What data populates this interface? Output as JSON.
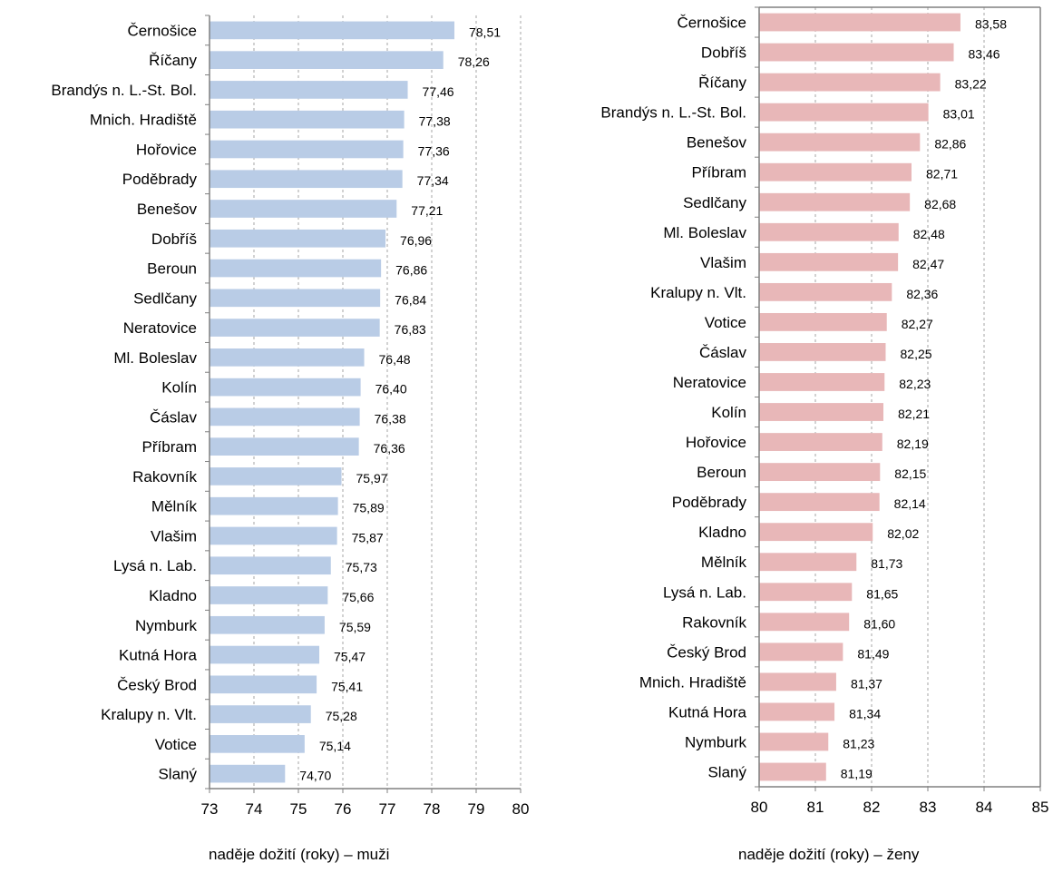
{
  "colors": {
    "male_bar": "#b9cce6",
    "female_bar": "#e8b7b8",
    "axis": "#808080",
    "grid": "#a6a6a6"
  },
  "chart_data": [
    {
      "type": "bar",
      "orientation": "horizontal",
      "title": "",
      "xlabel": "naděje dožití (roky) – muži",
      "ylabel": "",
      "xlim": [
        73,
        80
      ],
      "xticks": [
        "73",
        "74",
        "75",
        "76",
        "77",
        "78",
        "79",
        "80"
      ],
      "grid": "vertical dashed",
      "categories": [
        "Černošice",
        "Říčany",
        "Brandýs n. L.-St. Bol.",
        "Mnich. Hradiště",
        "Hořovice",
        "Poděbrady",
        "Benešov",
        "Dobříš",
        "Beroun",
        "Sedlčany",
        "Neratovice",
        "Ml. Boleslav",
        "Kolín",
        "Čáslav",
        "Příbram",
        "Rakovník",
        "Mělník",
        "Vlašim",
        "Lysá n. Lab.",
        "Kladno",
        "Nymburk",
        "Kutná Hora",
        "Český Brod",
        "Kralupy n. Vlt.",
        "Votice",
        "Slaný"
      ],
      "values": [
        78.51,
        78.26,
        77.46,
        77.38,
        77.36,
        77.34,
        77.21,
        76.96,
        76.86,
        76.84,
        76.83,
        76.48,
        76.4,
        76.38,
        76.36,
        75.97,
        75.89,
        75.87,
        75.73,
        75.66,
        75.59,
        75.47,
        75.41,
        75.28,
        75.14,
        74.7
      ],
      "value_labels": [
        "78,51",
        "78,26",
        "77,46",
        "77,38",
        "77,36",
        "77,34",
        "77,21",
        "76,96",
        "76,86",
        "76,84",
        "76,83",
        "76,48",
        "76,40",
        "76,38",
        "76,36",
        "75,97",
        "75,89",
        "75,87",
        "75,73",
        "75,66",
        "75,59",
        "75,47",
        "75,41",
        "75,28",
        "75,14",
        "74,70"
      ]
    },
    {
      "type": "bar",
      "orientation": "horizontal",
      "title": "",
      "xlabel": "naděje dožití (roky) – ženy",
      "ylabel": "",
      "xlim": [
        80,
        85
      ],
      "xticks": [
        "80",
        "81",
        "82",
        "83",
        "84",
        "85"
      ],
      "grid": "vertical dashed",
      "categories": [
        "Černošice",
        "Dobříš",
        "Říčany",
        "Brandýs n. L.-St. Bol.",
        "Benešov",
        "Příbram",
        "Sedlčany",
        "Ml. Boleslav",
        "Vlašim",
        "Kralupy n. Vlt.",
        "Votice",
        "Čáslav",
        "Neratovice",
        "Kolín",
        "Hořovice",
        "Beroun",
        "Poděbrady",
        "Kladno",
        "Mělník",
        "Lysá n. Lab.",
        "Rakovník",
        "Český Brod",
        "Mnich. Hradiště",
        "Kutná Hora",
        "Nymburk",
        "Slaný"
      ],
      "values": [
        83.58,
        83.46,
        83.22,
        83.01,
        82.86,
        82.71,
        82.68,
        82.48,
        82.47,
        82.36,
        82.27,
        82.25,
        82.23,
        82.21,
        82.19,
        82.15,
        82.14,
        82.02,
        81.73,
        81.65,
        81.6,
        81.49,
        81.37,
        81.34,
        81.23,
        81.19
      ],
      "value_labels": [
        "83,58",
        "83,46",
        "83,22",
        "83,01",
        "82,86",
        "82,71",
        "82,68",
        "82,48",
        "82,47",
        "82,36",
        "82,27",
        "82,25",
        "82,23",
        "82,21",
        "82,19",
        "82,15",
        "82,14",
        "82,02",
        "81,73",
        "81,65",
        "81,60",
        "81,49",
        "81,37",
        "81,34",
        "81,23",
        "81,19"
      ]
    }
  ]
}
